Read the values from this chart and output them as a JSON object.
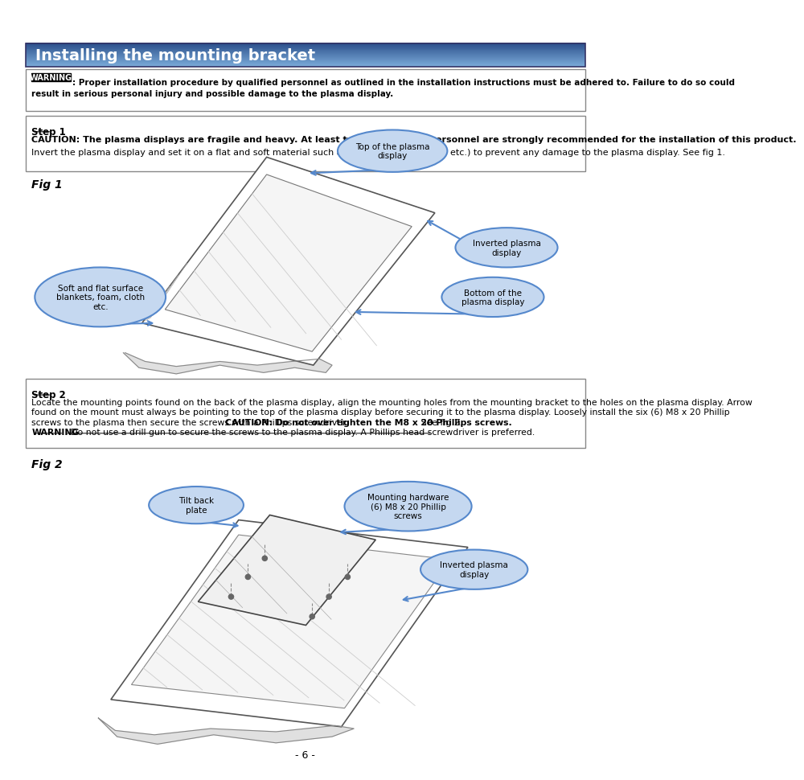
{
  "title": "Installing the mounting bracket",
  "page_bg": "#ffffff",
  "warning_box": {
    "label": "WARNING",
    "line1": ": Proper installation procedure by qualified personnel as outlined in the installation instructions must be adhered to. Failure to do so could",
    "line2": "result in serious personal injury and possible damage to the plasma display."
  },
  "step1_box": {
    "step_label": "Step 1",
    "caution_text": "CAUTION: The plasma displays are fragile and heavy. At least two (2) qualified personnel are strongly recommended for the installation of this product.",
    "body_text": "Invert the plasma display and set it on a flat and soft material such as (blankets, foam, cloth etc.) to prevent any damage to the plasma display. See fig 1."
  },
  "fig1_label": "Fig 1",
  "step2_box": {
    "step_label": "Step 2",
    "line1": "Locate the mounting points found on the back of the plasma display, align the mounting holes from the mounting bracket to the holes on the plasma display. Arrow",
    "line2": "found on the mount must always be pointing to the top of the plasma display before securing it to the plasma display. Loosely install the six (6) M8 x 20 Phillip",
    "line3a": "screws to the plasma then secure the screws with a Phillips screwdriver ",
    "line3b": "CAUTION: Do not over tighten the M8 x 20 Phillips screws.",
    "line3c": " See fig 2.",
    "line4a": "WARNING",
    "line4b": ": Do not use a drill gun to secure the screws to the plasma display. A Phillips head screwdriver is preferred."
  },
  "fig2_label": "Fig 2",
  "page_number": "- 6 -",
  "callout_fill": "#c5d8f0",
  "callout_edge": "#5588cc"
}
